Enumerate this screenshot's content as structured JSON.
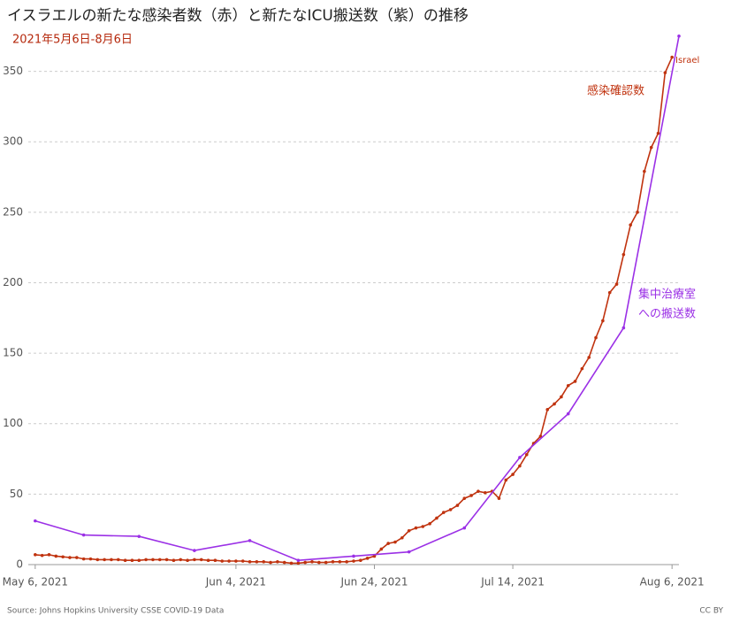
{
  "chart_data": {
    "type": "line",
    "title": "イスラエルの新たな感染者数（赤）と新たなICU搬送数（紫）の推移",
    "subtitle": "2021年5月6日-8月6日",
    "xlim": [
      "2021-05-05",
      "2021-08-07"
    ],
    "xticks": [
      {
        "value": "2021-05-06",
        "label": "May 6, 2021"
      },
      {
        "value": "2021-06-04",
        "label": "Jun 4, 2021"
      },
      {
        "value": "2021-06-24",
        "label": "Jun 24, 2021"
      },
      {
        "value": "2021-07-14",
        "label": "Jul 14, 2021"
      },
      {
        "value": "2021-08-06",
        "label": "Aug 6, 2021"
      }
    ],
    "ylim": [
      0,
      378
    ],
    "yticks": [
      0,
      50,
      100,
      150,
      200,
      250,
      300,
      350
    ],
    "grid": true,
    "series": [
      {
        "name": "感染確認数",
        "color": "#c0330f",
        "x": [
          "2021-05-06",
          "2021-05-07",
          "2021-05-08",
          "2021-05-09",
          "2021-05-10",
          "2021-05-11",
          "2021-05-12",
          "2021-05-13",
          "2021-05-14",
          "2021-05-15",
          "2021-05-16",
          "2021-05-17",
          "2021-05-18",
          "2021-05-19",
          "2021-05-20",
          "2021-05-21",
          "2021-05-22",
          "2021-05-23",
          "2021-05-24",
          "2021-05-25",
          "2021-05-26",
          "2021-05-27",
          "2021-05-28",
          "2021-05-29",
          "2021-05-30",
          "2021-05-31",
          "2021-06-01",
          "2021-06-02",
          "2021-06-03",
          "2021-06-04",
          "2021-06-05",
          "2021-06-06",
          "2021-06-07",
          "2021-06-08",
          "2021-06-09",
          "2021-06-10",
          "2021-06-11",
          "2021-06-12",
          "2021-06-13",
          "2021-06-14",
          "2021-06-15",
          "2021-06-16",
          "2021-06-17",
          "2021-06-18",
          "2021-06-19",
          "2021-06-20",
          "2021-06-21",
          "2021-06-22",
          "2021-06-23",
          "2021-06-24",
          "2021-06-25",
          "2021-06-26",
          "2021-06-27",
          "2021-06-28",
          "2021-06-29",
          "2021-06-30",
          "2021-07-01",
          "2021-07-02",
          "2021-07-03",
          "2021-07-04",
          "2021-07-05",
          "2021-07-06",
          "2021-07-07",
          "2021-07-08",
          "2021-07-09",
          "2021-07-10",
          "2021-07-11",
          "2021-07-12",
          "2021-07-13",
          "2021-07-14",
          "2021-07-15",
          "2021-07-16",
          "2021-07-17",
          "2021-07-18",
          "2021-07-19",
          "2021-07-20",
          "2021-07-21",
          "2021-07-22",
          "2021-07-23",
          "2021-07-24",
          "2021-07-25",
          "2021-07-26",
          "2021-07-27",
          "2021-07-28",
          "2021-07-29",
          "2021-07-30",
          "2021-07-31",
          "2021-08-01",
          "2021-08-02",
          "2021-08-03",
          "2021-08-04",
          "2021-08-05",
          "2021-08-06"
        ],
        "values": [
          7,
          6.5,
          7,
          6,
          5.5,
          5,
          5,
          4,
          4,
          3.5,
          3.5,
          3.5,
          3.5,
          3,
          3,
          3,
          3.5,
          3.5,
          3.5,
          3.5,
          3,
          3.5,
          3,
          3.5,
          3.5,
          3,
          3,
          2.5,
          2.5,
          2.5,
          2.5,
          2,
          2,
          2,
          1.5,
          2,
          1.5,
          1,
          1,
          1.5,
          2,
          1.5,
          1.5,
          2,
          2,
          2,
          2.5,
          3,
          4.5,
          6,
          11,
          15,
          16,
          19,
          24,
          26,
          27,
          29,
          33,
          37,
          39,
          42,
          47,
          49,
          52,
          51,
          52,
          47,
          60,
          64,
          70,
          78,
          86,
          91,
          110,
          114,
          119,
          127,
          130,
          139,
          147,
          161,
          173,
          193,
          199,
          220,
          241,
          250,
          279,
          296,
          306,
          349,
          360
        ]
      },
      {
        "name": "集中治療室への搬送数",
        "color": "#9b30e6",
        "x": [
          "2021-05-06",
          "2021-05-13",
          "2021-05-21",
          "2021-05-29",
          "2021-06-06",
          "2021-06-13",
          "2021-06-21",
          "2021-06-29",
          "2021-07-07",
          "2021-07-15",
          "2021-07-22",
          "2021-07-30",
          "2021-08-07"
        ],
        "values": [
          31,
          21,
          20,
          10,
          17,
          3,
          6,
          9,
          26,
          76,
          107,
          168,
          375
        ]
      }
    ],
    "annotations": {
      "country": "Israel",
      "red_label": "感染確認数",
      "purple_label": [
        "集中治療室",
        "への搬送数"
      ]
    },
    "source": "Source: Johns Hopkins University CSSE COVID-19 Data",
    "license": "CC BY"
  }
}
